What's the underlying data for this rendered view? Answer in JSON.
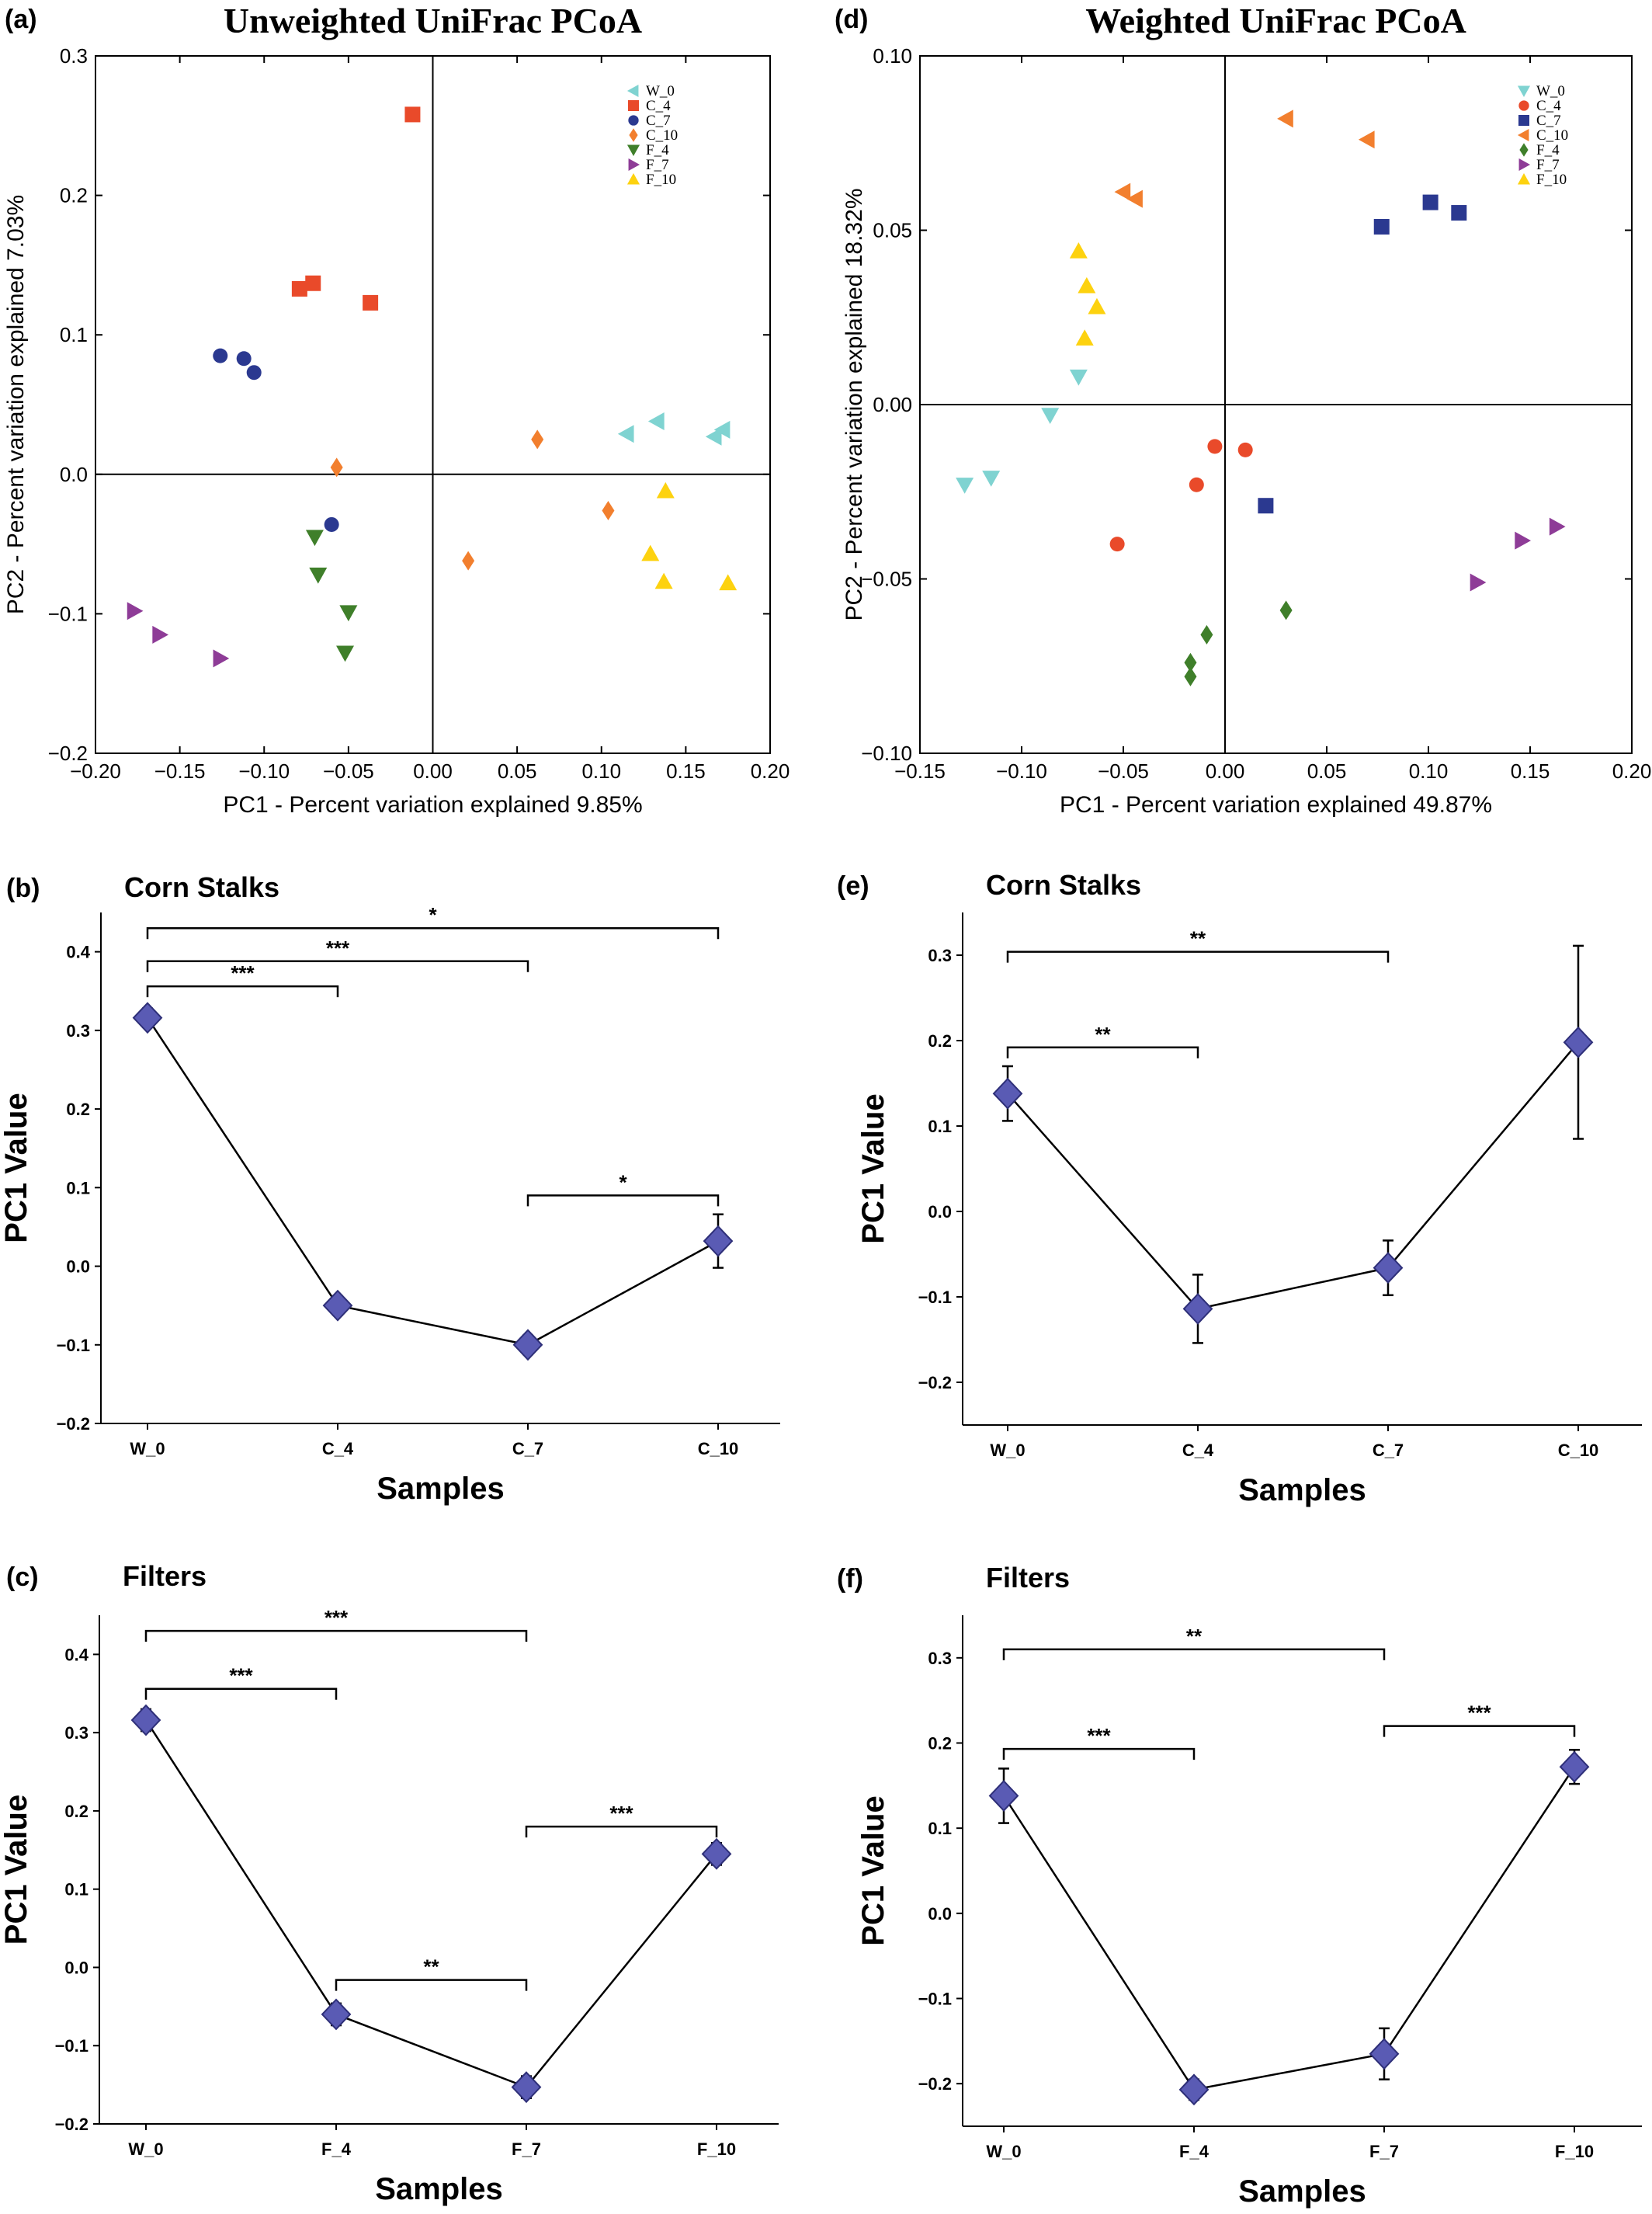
{
  "colors": {
    "W_0": "#7FD3D1",
    "C_4": "#E94A2A",
    "C_7": "#2B3990",
    "C_10": "#F27F2E",
    "F_4": "#3F7F2A",
    "F_7": "#8E3C97",
    "F_10": "#FDD20F",
    "marker": "#5A5BB4",
    "marker_edge": "#2E2F78"
  },
  "chart_data": [
    {
      "id": "a",
      "panel_label": "(a)",
      "type": "scatter",
      "title": "Unweighted UniFrac PCoA",
      "xlabel": "PC1 - Percent variation explained 9.85%",
      "ylabel": "PC2 - Percent variation explained 7.03%",
      "xlim": [
        -0.2,
        0.2
      ],
      "ylim": [
        -0.2,
        0.3
      ],
      "xticks": [
        -0.2,
        -0.15,
        -0.1,
        -0.05,
        0.0,
        0.05,
        0.1,
        0.15,
        0.2
      ],
      "xtick_labels": [
        "−0.20",
        "−0.15",
        "−0.10",
        "−0.05",
        "0.00",
        "0.05",
        "0.10",
        "0.15",
        "0.20"
      ],
      "yticks": [
        -0.2,
        -0.1,
        0.0,
        0.1,
        0.2,
        0.3
      ],
      "ytick_labels": [
        "−0.2",
        "−0.1",
        "0.0",
        "0.1",
        "0.2",
        "0.3"
      ],
      "legend_position": "top-right",
      "series": [
        {
          "name": "W_0",
          "marker": "tri-left",
          "points": [
            [
              0.115,
              0.029
            ],
            [
              0.133,
              0.038
            ],
            [
              0.167,
              0.027
            ],
            [
              0.172,
              0.032
            ]
          ]
        },
        {
          "name": "C_4",
          "marker": "square",
          "points": [
            [
              -0.012,
              0.258
            ],
            [
              -0.079,
              0.133
            ],
            [
              -0.071,
              0.137
            ],
            [
              -0.037,
              0.123
            ]
          ]
        },
        {
          "name": "C_7",
          "marker": "circle",
          "points": [
            [
              -0.126,
              0.085
            ],
            [
              -0.112,
              0.083
            ],
            [
              -0.106,
              0.073
            ],
            [
              -0.06,
              -0.036
            ]
          ]
        },
        {
          "name": "C_10",
          "marker": "diamond",
          "points": [
            [
              -0.057,
              0.005
            ],
            [
              0.062,
              0.025
            ],
            [
              0.021,
              -0.062
            ],
            [
              0.104,
              -0.026
            ]
          ]
        },
        {
          "name": "F_4",
          "marker": "tri-down",
          "points": [
            [
              -0.07,
              -0.045
            ],
            [
              -0.068,
              -0.072
            ],
            [
              -0.05,
              -0.099
            ],
            [
              -0.052,
              -0.128
            ]
          ]
        },
        {
          "name": "F_7",
          "marker": "tri-right",
          "points": [
            [
              -0.177,
              -0.098
            ],
            [
              -0.162,
              -0.115
            ],
            [
              -0.126,
              -0.132
            ]
          ]
        },
        {
          "name": "F_10",
          "marker": "tri-up",
          "points": [
            [
              0.138,
              -0.012
            ],
            [
              0.129,
              -0.057
            ],
            [
              0.137,
              -0.077
            ],
            [
              0.175,
              -0.078
            ]
          ]
        }
      ]
    },
    {
      "id": "d",
      "panel_label": "(d)",
      "type": "scatter",
      "title": "Weighted UniFrac PCoA",
      "xlabel": "PC1 - Percent variation explained 49.87%",
      "ylabel": "PC2 - Percent variation explained 18.32%",
      "xlim": [
        -0.15,
        0.2
      ],
      "ylim": [
        -0.1,
        0.1
      ],
      "xticks": [
        -0.15,
        -0.1,
        -0.05,
        0.0,
        0.05,
        0.1,
        0.15,
        0.2
      ],
      "xtick_labels": [
        "−0.15",
        "−0.10",
        "−0.05",
        "0.00",
        "0.05",
        "0.10",
        "0.15",
        "0.20"
      ],
      "yticks": [
        -0.1,
        -0.05,
        0.0,
        0.05,
        0.1
      ],
      "ytick_labels": [
        "−0.10",
        "−0.05",
        "0.00",
        "0.05",
        "0.10"
      ],
      "legend_position": "top-right",
      "series": [
        {
          "name": "W_0",
          "marker": "tri-down",
          "points": [
            [
              -0.072,
              0.008
            ],
            [
              -0.086,
              -0.003
            ],
            [
              -0.115,
              -0.021
            ],
            [
              -0.128,
              -0.023
            ]
          ]
        },
        {
          "name": "C_4",
          "marker": "circle",
          "points": [
            [
              -0.005,
              -0.012
            ],
            [
              0.01,
              -0.013
            ],
            [
              -0.014,
              -0.023
            ],
            [
              -0.053,
              -0.04
            ]
          ]
        },
        {
          "name": "C_7",
          "marker": "square",
          "points": [
            [
              0.077,
              0.051
            ],
            [
              0.101,
              0.058
            ],
            [
              0.115,
              0.055
            ],
            [
              0.02,
              -0.029
            ]
          ]
        },
        {
          "name": "C_10",
          "marker": "tri-left",
          "points": [
            [
              0.03,
              0.082
            ],
            [
              0.07,
              0.076
            ],
            [
              -0.05,
              0.061
            ],
            [
              -0.044,
              0.059
            ]
          ]
        },
        {
          "name": "F_4",
          "marker": "diamond",
          "points": [
            [
              0.03,
              -0.059
            ],
            [
              -0.009,
              -0.066
            ],
            [
              -0.017,
              -0.074
            ],
            [
              -0.017,
              -0.078
            ]
          ]
        },
        {
          "name": "F_7",
          "marker": "tri-right",
          "points": [
            [
              0.163,
              -0.035
            ],
            [
              0.146,
              -0.039
            ],
            [
              0.124,
              -0.051
            ]
          ]
        },
        {
          "name": "F_10",
          "marker": "tri-up",
          "points": [
            [
              -0.072,
              0.044
            ],
            [
              -0.068,
              0.034
            ],
            [
              -0.063,
              0.028
            ],
            [
              -0.069,
              0.019
            ]
          ]
        }
      ]
    },
    {
      "id": "b",
      "panel_label": "(b)",
      "type": "line",
      "title": "Corn Stalks",
      "xlabel": "Samples",
      "ylabel": "PC1 Value",
      "ylim": [
        -0.2,
        0.45
      ],
      "yticks": [
        -0.2,
        -0.1,
        0.0,
        0.1,
        0.2,
        0.3,
        0.4
      ],
      "ytick_labels": [
        "−0.2",
        "−0.1",
        "0.0",
        "0.1",
        "0.2",
        "0.3",
        "0.4"
      ],
      "categories": [
        "W_0",
        "C_4",
        "C_7",
        "C_10"
      ],
      "values": [
        0.316,
        -0.05,
        -0.1,
        0.032
      ],
      "errors": [
        0.012,
        0.012,
        0.012,
        0.034
      ],
      "significance": [
        {
          "from": 0,
          "to": 1,
          "y": 0.356,
          "label": "***"
        },
        {
          "from": 0,
          "to": 2,
          "y": 0.388,
          "label": "***"
        },
        {
          "from": 0,
          "to": 3,
          "y": 0.43,
          "label": "*"
        },
        {
          "from": 2,
          "to": 3,
          "y": 0.09,
          "label": "*"
        }
      ]
    },
    {
      "id": "e",
      "panel_label": "(e)",
      "type": "line",
      "title": "Corn Stalks",
      "xlabel": "Samples",
      "ylabel": "PC1 Value",
      "ylim": [
        -0.25,
        0.35
      ],
      "yticks": [
        -0.2,
        -0.1,
        0.0,
        0.1,
        0.2,
        0.3
      ],
      "ytick_labels": [
        "−0.2",
        "−0.1",
        "0.0",
        "0.1",
        "0.2",
        "0.3"
      ],
      "categories": [
        "W_0",
        "C_4",
        "C_7",
        "C_10"
      ],
      "values": [
        0.138,
        -0.114,
        -0.066,
        0.198
      ],
      "errors": [
        0.032,
        0.04,
        0.032,
        0.113
      ],
      "significance": [
        {
          "from": 0,
          "to": 1,
          "y": 0.192,
          "label": "**"
        },
        {
          "from": 0,
          "to": 2,
          "y": 0.304,
          "label": "**"
        }
      ]
    },
    {
      "id": "c",
      "panel_label": "(c)",
      "type": "line",
      "title": "Filters",
      "xlabel": "Samples",
      "ylabel": "PC1 Value",
      "ylim": [
        -0.2,
        0.45
      ],
      "yticks": [
        -0.2,
        -0.1,
        0.0,
        0.1,
        0.2,
        0.3,
        0.4
      ],
      "ytick_labels": [
        "−0.2",
        "−0.1",
        "0.0",
        "0.1",
        "0.2",
        "0.3",
        "0.4"
      ],
      "categories": [
        "W_0",
        "F_4",
        "F_7",
        "F_10"
      ],
      "values": [
        0.316,
        -0.06,
        -0.153,
        0.145
      ],
      "errors": [
        0.014,
        0.014,
        0.014,
        0.014
      ],
      "significance": [
        {
          "from": 0,
          "to": 1,
          "y": 0.356,
          "label": "***"
        },
        {
          "from": 0,
          "to": 2,
          "y": 0.43,
          "label": "***"
        },
        {
          "from": 1,
          "to": 2,
          "y": -0.016,
          "label": "**"
        },
        {
          "from": 2,
          "to": 3,
          "y": 0.18,
          "label": "***"
        }
      ]
    },
    {
      "id": "f",
      "panel_label": "(f)",
      "type": "line",
      "title": "Filters",
      "xlabel": "Samples",
      "ylabel": "PC1 Value",
      "ylim": [
        -0.25,
        0.35
      ],
      "yticks": [
        -0.2,
        -0.1,
        0.0,
        0.1,
        0.2,
        0.3
      ],
      "ytick_labels": [
        "−0.2",
        "−0.1",
        "0.0",
        "0.1",
        "0.2",
        "0.3"
      ],
      "categories": [
        "W_0",
        "F_4",
        "F_7",
        "F_10"
      ],
      "values": [
        0.138,
        -0.207,
        -0.165,
        0.172
      ],
      "errors": [
        0.032,
        0.012,
        0.03,
        0.02
      ],
      "significance": [
        {
          "from": 0,
          "to": 1,
          "y": 0.193,
          "label": "***"
        },
        {
          "from": 0,
          "to": 2,
          "y": 0.31,
          "label": "**"
        },
        {
          "from": 2,
          "to": 3,
          "y": 0.22,
          "label": "***"
        }
      ]
    }
  ]
}
